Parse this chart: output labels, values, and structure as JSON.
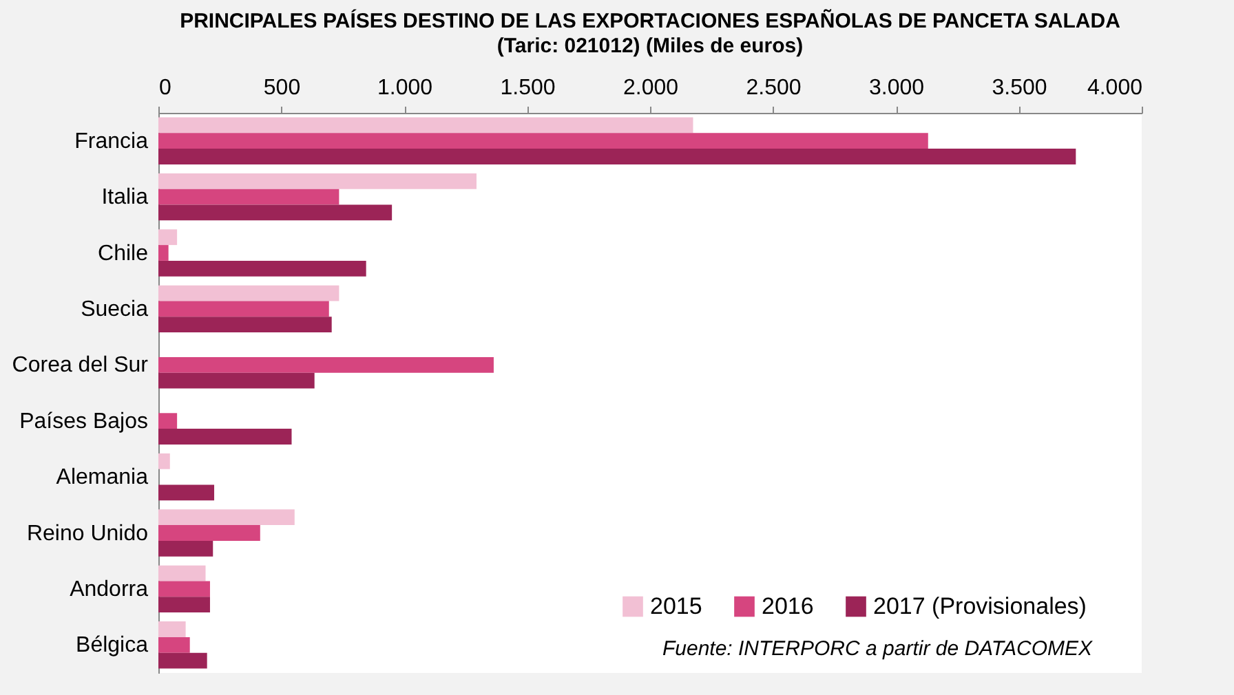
{
  "chart_data": {
    "type": "bar",
    "orientation": "horizontal",
    "title": "PRINCIPALES PAÍSES DESTINO DE LAS EXPORTACIONES ESPAÑOLAS DE  PANCETA SALADA",
    "subtitle": "(Taric: 021012) (Miles de euros)",
    "categories": [
      "Francia",
      "Italia",
      "Chile",
      "Suecia",
      "Corea del Sur",
      "Países Bajos",
      "Alemania",
      "Reino Unido",
      "Andorra",
      "Bélgica"
    ],
    "series": [
      {
        "name": "2015",
        "color": "#f2c0d4",
        "values": [
          2175,
          1294,
          76,
          735,
          0,
          0,
          47,
          554,
          192,
          111
        ]
      },
      {
        "name": "2016",
        "color": "#d6457f",
        "values": [
          3131,
          735,
          41,
          694,
          1364,
          76,
          0,
          414,
          210,
          128
        ]
      },
      {
        "name": "2017 (Provisionales)",
        "color": "#9c2457",
        "values": [
          3732,
          950,
          845,
          705,
          635,
          542,
          227,
          222,
          210,
          198
        ]
      }
    ],
    "xlim": [
      0,
      4000
    ],
    "xticks": [
      {
        "value": 0,
        "label": "0"
      },
      {
        "value": 500,
        "label": "500"
      },
      {
        "value": 1000,
        "label": "1.000"
      },
      {
        "value": 1500,
        "label": "1.500"
      },
      {
        "value": 2000,
        "label": "2.000"
      },
      {
        "value": 2500,
        "label": "2.500"
      },
      {
        "value": 3000,
        "label": "3.000"
      },
      {
        "value": 3500,
        "label": "3.500"
      },
      {
        "value": 4000,
        "label": "4.000"
      }
    ],
    "grid": false,
    "legend": "bottom right",
    "annotations": [
      "Fuente: INTERPORC  a partir de DATACOMEX"
    ]
  }
}
